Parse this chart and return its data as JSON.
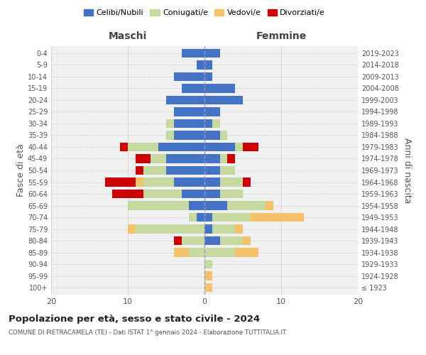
{
  "age_groups": [
    "100+",
    "95-99",
    "90-94",
    "85-89",
    "80-84",
    "75-79",
    "70-74",
    "65-69",
    "60-64",
    "55-59",
    "50-54",
    "45-49",
    "40-44",
    "35-39",
    "30-34",
    "25-29",
    "20-24",
    "15-19",
    "10-14",
    "5-9",
    "0-4"
  ],
  "birth_years": [
    "≤ 1923",
    "1924-1928",
    "1929-1933",
    "1934-1938",
    "1939-1943",
    "1944-1948",
    "1949-1953",
    "1954-1958",
    "1959-1963",
    "1964-1968",
    "1969-1973",
    "1974-1978",
    "1979-1983",
    "1984-1988",
    "1989-1993",
    "1994-1998",
    "1999-2003",
    "2004-2008",
    "2009-2013",
    "2014-2018",
    "2019-2023"
  ],
  "maschi": {
    "celibi": [
      0,
      0,
      0,
      0,
      0,
      0,
      1,
      2,
      3,
      4,
      5,
      5,
      6,
      4,
      4,
      4,
      5,
      3,
      4,
      1,
      3
    ],
    "coniugati": [
      0,
      0,
      0,
      2,
      3,
      9,
      1,
      8,
      5,
      4,
      3,
      2,
      4,
      1,
      1,
      0,
      0,
      0,
      0,
      0,
      0
    ],
    "vedovi": [
      0,
      0,
      0,
      2,
      0,
      1,
      0,
      0,
      0,
      1,
      0,
      0,
      0,
      0,
      0,
      0,
      0,
      0,
      0,
      0,
      0
    ],
    "divorziati": [
      0,
      0,
      0,
      0,
      1,
      0,
      0,
      0,
      4,
      4,
      1,
      2,
      1,
      0,
      0,
      0,
      0,
      0,
      0,
      0,
      0
    ]
  },
  "femmine": {
    "nubili": [
      0,
      0,
      0,
      0,
      2,
      1,
      1,
      3,
      2,
      2,
      2,
      2,
      4,
      2,
      1,
      2,
      5,
      4,
      1,
      1,
      2
    ],
    "coniugate": [
      0,
      0,
      1,
      4,
      3,
      3,
      5,
      5,
      3,
      3,
      2,
      1,
      1,
      1,
      1,
      0,
      0,
      0,
      0,
      0,
      0
    ],
    "vedove": [
      1,
      1,
      0,
      3,
      1,
      1,
      7,
      1,
      0,
      0,
      0,
      0,
      0,
      0,
      0,
      0,
      0,
      0,
      0,
      0,
      0
    ],
    "divorziate": [
      0,
      0,
      0,
      0,
      0,
      0,
      0,
      0,
      0,
      1,
      0,
      1,
      2,
      0,
      0,
      0,
      0,
      0,
      0,
      0,
      0
    ]
  },
  "colors": {
    "celibi_nubili": "#4472c4",
    "coniugati": "#c5d9a0",
    "vedovi": "#f5c26b",
    "divorziati": "#cc0000"
  },
  "xlim": 20,
  "title": "Popolazione per età, sesso e stato civile - 2024",
  "subtitle": "COMUNE DI PIETRACAMELA (TE) - Dati ISTAT 1° gennaio 2024 - Elaborazione TUTTITALIA.IT",
  "ylabel_left": "Fasce di età",
  "ylabel_right": "Anni di nascita",
  "xlabel_left": "Maschi",
  "xlabel_right": "Femmine",
  "bg_color": "#f0f0f0",
  "grid_color": "#cccccc"
}
